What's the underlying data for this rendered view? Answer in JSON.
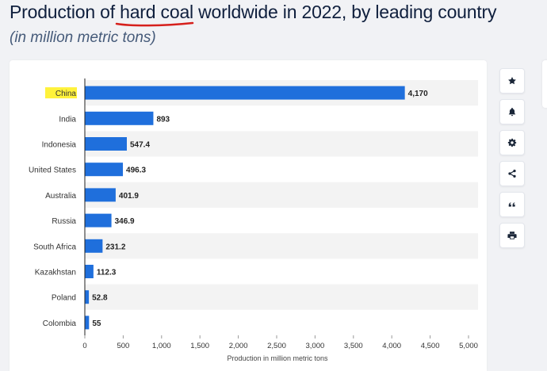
{
  "header": {
    "title_pre": "Production of ",
    "title_highlight": "hard coal",
    "title_post": " worldwide in 2022, by leading country",
    "subtitle": "(in million metric tons)"
  },
  "tools": [
    {
      "name": "favorite-star-icon",
      "glyph": "star"
    },
    {
      "name": "notification-bell-icon",
      "glyph": "bell"
    },
    {
      "name": "settings-gear-icon",
      "glyph": "gear"
    },
    {
      "name": "share-icon",
      "glyph": "share"
    },
    {
      "name": "cite-quote-icon",
      "glyph": "quote"
    },
    {
      "name": "print-icon",
      "glyph": "print"
    }
  ],
  "colors": {
    "bar": "#1f6fdc",
    "band": "#f3f3f3",
    "highlight": "#fff23b",
    "underline": "#d6201c",
    "icon": "#1a2638"
  },
  "chart_data": {
    "type": "bar",
    "orientation": "horizontal",
    "categories": [
      "China",
      "India",
      "Indonesia",
      "United States",
      "Australia",
      "Russia",
      "South Africa",
      "Kazakhstan",
      "Poland",
      "Colombia"
    ],
    "values": [
      4170,
      893,
      547.4,
      496.3,
      401.9,
      346.9,
      231.2,
      112.3,
      52.8,
      55
    ],
    "value_labels": [
      "4,170",
      "893",
      "547.4",
      "496.3",
      "401.9",
      "346.9",
      "231.2",
      "112.3",
      "52.8",
      "55"
    ],
    "xlim": [
      0,
      5000
    ],
    "xticks": [
      0,
      500,
      1000,
      1500,
      2000,
      2500,
      3000,
      3500,
      4000,
      4500,
      5000
    ],
    "xtick_labels": [
      "0",
      "500",
      "1,000",
      "1,500",
      "2,000",
      "2,500",
      "3,000",
      "3,500",
      "4,000",
      "4,500",
      "5,000"
    ],
    "xlabel": "Production in million metric tons",
    "highlighted_category": "China",
    "grid": false
  }
}
